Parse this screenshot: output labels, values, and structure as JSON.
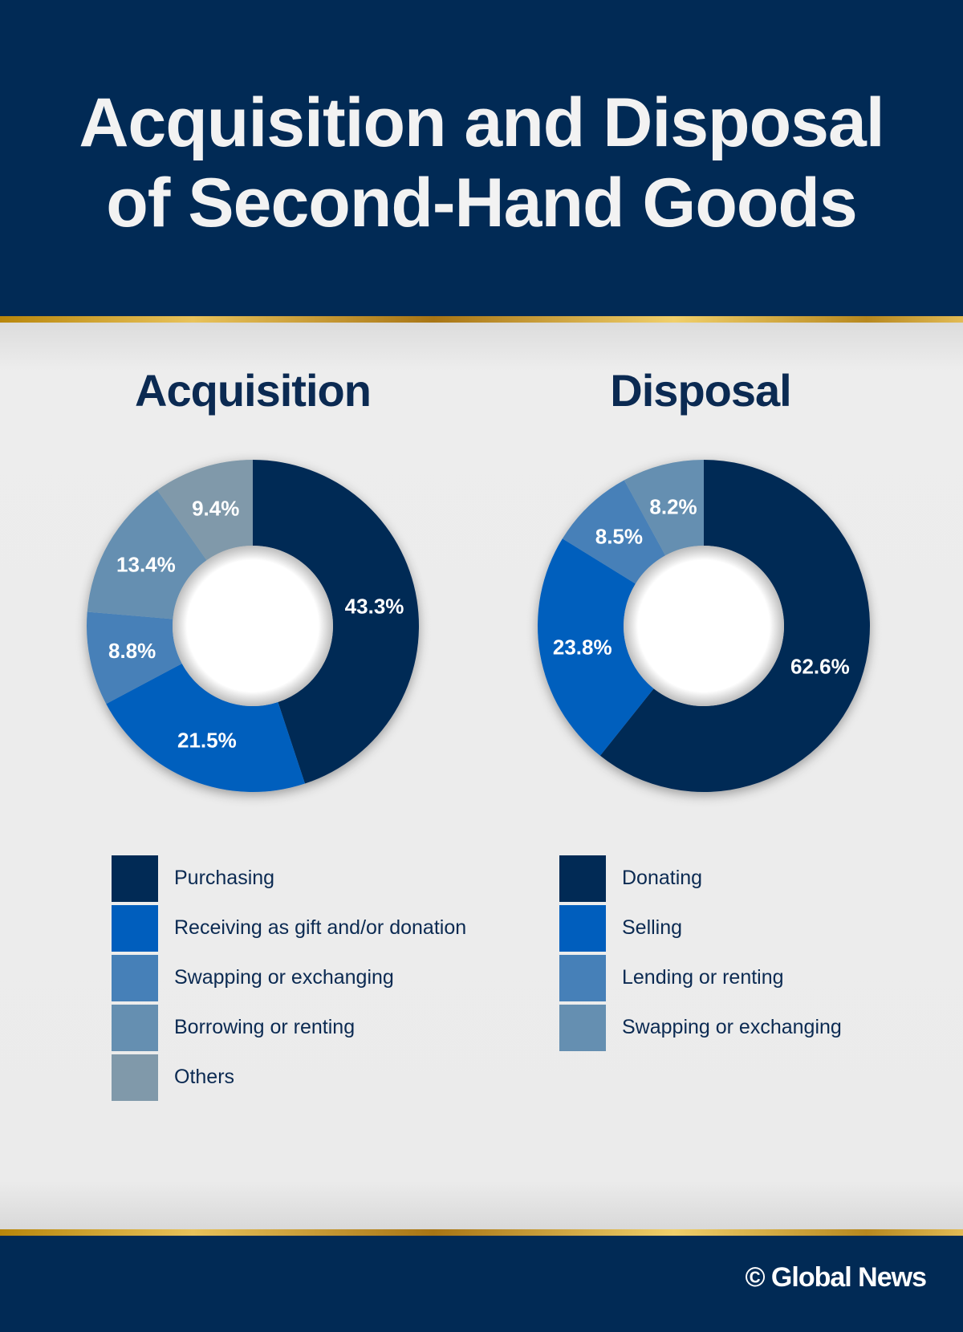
{
  "header": {
    "title_line1": "Acquisition and Disposal",
    "title_line2": "of Second-Hand Goods"
  },
  "footer": {
    "credit": "© Global News"
  },
  "chart_data": [
    {
      "type": "pie",
      "title": "Acquisition",
      "categories": [
        "Purchasing",
        "Receiving as gift and/or donation",
        "Swapping or exchanging",
        "Borrowing or renting",
        "Others"
      ],
      "values": [
        43.3,
        21.5,
        8.8,
        13.4,
        9.4
      ],
      "value_labels": [
        "43.3%",
        "21.5%",
        "8.8%",
        "13.4%",
        "9.4%"
      ],
      "colors": [
        "#012a55",
        "#005ebd",
        "#4680b8",
        "#658fb1",
        "#8099aa"
      ],
      "donut": true,
      "legend_position": "bottom"
    },
    {
      "type": "pie",
      "title": "Disposal",
      "categories": [
        "Donating",
        "Selling",
        "Lending or renting",
        "Swapping or exchanging"
      ],
      "values": [
        62.6,
        23.8,
        8.5,
        8.2
      ],
      "value_labels": [
        "62.6%",
        "23.8%",
        "8.5%",
        "8.2%"
      ],
      "colors": [
        "#012a55",
        "#005ebd",
        "#4680b8",
        "#658fb1"
      ],
      "donut": true,
      "legend_position": "bottom"
    }
  ]
}
